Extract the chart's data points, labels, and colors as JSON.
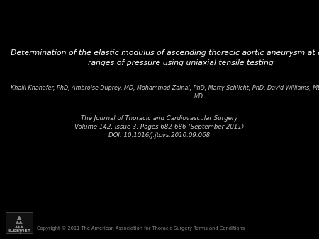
{
  "background_color": "#000000",
  "title_line1": "Determination of the elastic modulus of ascending thoracic aortic aneurysm at different",
  "title_line2": "ranges of pressure using uniaxial tensile testing",
  "title_color": "#ffffff",
  "title_fontsize": 7.8,
  "title_style": "italic",
  "authors_line1": "Khalil Khanafer, PhD, Ambroise Duprey, MD, Mohammad Zainal, PhD, Marty Schlicht, PhD, David Williams, MD, Ramon Berguer, PhD,",
  "authors_line2": "MD",
  "authors_color": "#cccccc",
  "authors_fontsize": 5.8,
  "authors_style": "italic",
  "journal_line1": "The Journal of Thoracic and Cardiovascular Surgery",
  "journal_line2": "Volume 142, Issue 3, Pages 682-686 (September 2011)",
  "journal_line3": "DOI: 10.1016/j.jtcvs.2010.09.068",
  "journal_color": "#cccccc",
  "journal_fontsize": 6.2,
  "journal_style": "italic",
  "copyright": "Copyright © 2011 The American Association for Thoracic Surgery Terms and Conditions",
  "copyright_color": "#888888",
  "copyright_fontsize": 4.8,
  "elsevier_color": "#aaaaaa",
  "elsevier_fontsize": 4.5
}
